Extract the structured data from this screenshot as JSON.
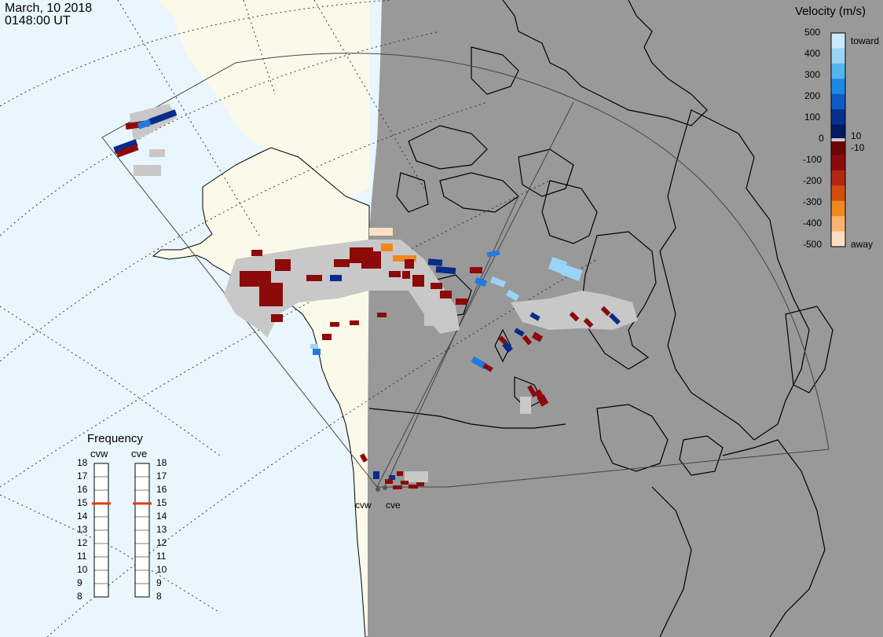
{
  "header": {
    "date": "March, 10 2018",
    "time": "0148:00 UT"
  },
  "colors": {
    "ocean": "#e9f6fd",
    "land_day": "#fbfaea",
    "night": "#999999",
    "coast": "#000000",
    "grid_dots": "#333333",
    "ground_scatter": "#c8c8c8",
    "freq_marker": "#e03c10"
  },
  "velocity_legend": {
    "title": "Velocity (m/s)",
    "ticks": [
      "500",
      "400",
      "300",
      "200",
      "100",
      "10",
      "0",
      "-10",
      "-100",
      "-200",
      "-300",
      "-400",
      "-500"
    ],
    "toward_label": "toward",
    "away_label": "away",
    "color_stops": [
      "#cbe9fb",
      "#9ad4f6",
      "#55b4f0",
      "#1d89e0",
      "#0f5bc2",
      "#08308f",
      "#041a60",
      "#6b0606",
      "#8c0a0a",
      "#b02810",
      "#d24d10",
      "#f08820",
      "#f9b36c",
      "#fde0c4"
    ]
  },
  "frequency_legend": {
    "title": "Frequency",
    "radars": [
      {
        "name": "cvw",
        "value_mhz": 15
      },
      {
        "name": "cve",
        "value_mhz": 15
      }
    ],
    "scale": [
      "18",
      "17",
      "16",
      "15",
      "14",
      "13",
      "12",
      "11",
      "10",
      "9",
      "8"
    ]
  },
  "sites": [
    {
      "name": "cvw"
    },
    {
      "name": "cve"
    }
  ]
}
